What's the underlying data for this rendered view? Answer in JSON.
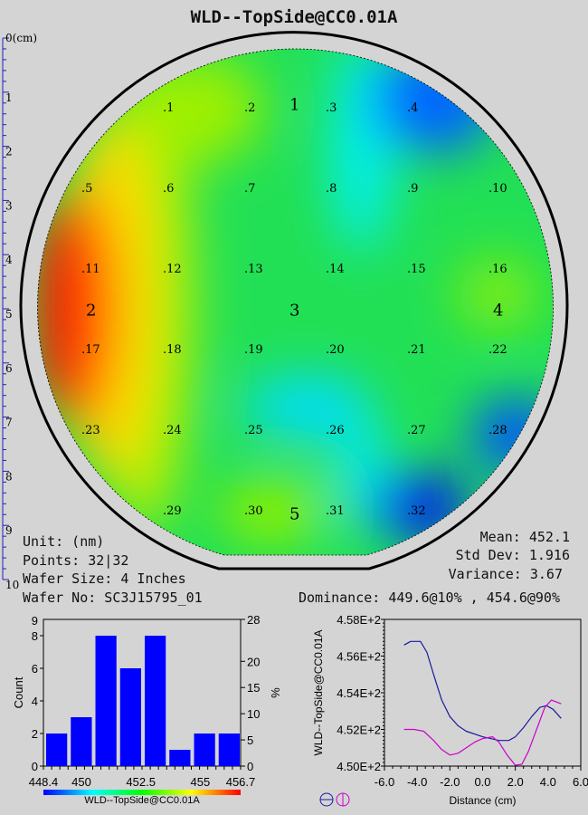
{
  "title": "WLD--TopSide@CC0.01A",
  "ruler": {
    "labels": [
      "0(cm)",
      "1",
      "2",
      "3",
      "4",
      "5",
      "6",
      "7",
      "8",
      "9",
      "10"
    ]
  },
  "wafer": {
    "points": [
      {
        "label": ".1",
        "col": 1,
        "row": 0
      },
      {
        "label": ".2",
        "col": 2,
        "row": 0
      },
      {
        "label": ".3",
        "col": 3,
        "row": 0
      },
      {
        "label": ".4",
        "col": 4,
        "row": 0
      },
      {
        "label": ".5",
        "col": 0,
        "row": 1
      },
      {
        "label": ".6",
        "col": 1,
        "row": 1
      },
      {
        "label": ".7",
        "col": 2,
        "row": 1
      },
      {
        "label": ".8",
        "col": 3,
        "row": 1
      },
      {
        "label": ".9",
        "col": 4,
        "row": 1
      },
      {
        "label": ".10",
        "col": 5,
        "row": 1
      },
      {
        "label": ".11",
        "col": 0,
        "row": 2
      },
      {
        "label": ".12",
        "col": 1,
        "row": 2
      },
      {
        "label": ".13",
        "col": 2,
        "row": 2
      },
      {
        "label": ".14",
        "col": 3,
        "row": 2
      },
      {
        "label": ".15",
        "col": 4,
        "row": 2
      },
      {
        "label": ".16",
        "col": 5,
        "row": 2
      },
      {
        "label": ".17",
        "col": 0,
        "row": 3
      },
      {
        "label": ".18",
        "col": 1,
        "row": 3
      },
      {
        "label": ".19",
        "col": 2,
        "row": 3
      },
      {
        "label": ".20",
        "col": 3,
        "row": 3
      },
      {
        "label": ".21",
        "col": 4,
        "row": 3
      },
      {
        "label": ".22",
        "col": 5,
        "row": 3
      },
      {
        "label": ".23",
        "col": 0,
        "row": 4
      },
      {
        "label": ".24",
        "col": 1,
        "row": 4
      },
      {
        "label": ".25",
        "col": 2,
        "row": 4
      },
      {
        "label": ".26",
        "col": 3,
        "row": 4
      },
      {
        "label": ".27",
        "col": 4,
        "row": 4
      },
      {
        "label": ".28",
        "col": 5,
        "row": 4
      },
      {
        "label": ".29",
        "col": 1,
        "row": 5
      },
      {
        "label": ".30",
        "col": 2,
        "row": 5
      },
      {
        "label": ".31",
        "col": 3,
        "row": 5
      },
      {
        "label": ".32",
        "col": 4,
        "row": 5
      }
    ],
    "zones": [
      {
        "label": "1",
        "col": 2.5,
        "row": -0.05
      },
      {
        "label": "2",
        "col": 0,
        "row": 2.5
      },
      {
        "label": "3",
        "col": 2.5,
        "row": 2.5
      },
      {
        "label": "4",
        "col": 5,
        "row": 2.5
      },
      {
        "label": "5",
        "col": 2.5,
        "row": 5.03
      }
    ]
  },
  "info": {
    "unit": "Unit: (nm)",
    "points": "Points: 32|32",
    "wafer_size": "Wafer Size: 4 Inches",
    "wafer_no": "Wafer No: SC3J15795_01",
    "mean": "Mean: 452.1",
    "std_dev": "Std Dev: 1.916",
    "variance": "Variance: 3.67",
    "dominance": "Dominance: 449.6@10% , 454.6@90%"
  },
  "chart_data": [
    {
      "type": "bar",
      "title": "",
      "xlabel": "WLD--TopSide@CC0.01A",
      "ylabel": "Count",
      "y2label": "%",
      "xlim": [
        448.4,
        456.7
      ],
      "ylim": [
        0,
        9
      ],
      "y2lim": [
        0,
        28
      ],
      "values": [
        2,
        3,
        8,
        6,
        8,
        1,
        2,
        2
      ],
      "xticks": [
        "448.4",
        "450",
        "452.5",
        "455",
        "456.7"
      ],
      "xtick_values": [
        448.4,
        450,
        452.5,
        455,
        456.7
      ],
      "yticks": [
        0,
        2,
        4,
        6,
        8
      ],
      "yticks_labels": [
        "0",
        "2",
        "4",
        "6",
        "8"
      ],
      "y2ticks": [
        "0",
        "5",
        "10",
        "15",
        "20",
        "28"
      ],
      "y2tick_values": [
        0,
        5,
        10,
        15,
        20,
        28
      ],
      "bar_color": "#0000ff",
      "colorbar": [
        "#0000ff",
        "#00ffff",
        "#00ff00",
        "#ffff00",
        "#ff0000"
      ]
    },
    {
      "type": "line",
      "xlabel": "Distance (cm)",
      "ylabel": "WLD--TopSide@CC0.01A",
      "xlim": [
        -6,
        6
      ],
      "ylim": [
        450,
        458
      ],
      "xticks": [
        "-6.0",
        "-4.0",
        "-2.0",
        "0.0",
        "2.0",
        "4.0",
        "6.0"
      ],
      "xtick_values": [
        -6,
        -4,
        -2,
        0,
        2,
        4,
        6
      ],
      "yticks": [
        "4.50E+2",
        "4.52E+2",
        "4.54E+2",
        "4.56E+2",
        "4.58E+2"
      ],
      "ytick_values": [
        450,
        452,
        454,
        456,
        458
      ],
      "series": [
        {
          "name": "horizontal",
          "color": "#1a1aa0",
          "x": [
            -4.8,
            -4.4,
            -3.8,
            -3.4,
            -3.0,
            -2.5,
            -2.0,
            -1.5,
            -1.0,
            0,
            1.0,
            1.6,
            2.0,
            2.5,
            3.0,
            3.5,
            3.9,
            4.3,
            4.8
          ],
          "y": [
            456.6,
            456.8,
            456.8,
            456.2,
            455.0,
            453.6,
            452.7,
            452.2,
            451.9,
            451.6,
            451.4,
            451.4,
            451.6,
            452.1,
            452.7,
            453.2,
            453.3,
            453.1,
            452.6
          ]
        },
        {
          "name": "vertical",
          "color": "#cc00cc",
          "x": [
            -4.8,
            -4.2,
            -3.6,
            -3.0,
            -2.5,
            -2.0,
            -1.5,
            -1.0,
            -0.5,
            0,
            0.6,
            1.0,
            1.5,
            2.0,
            2.4,
            2.8,
            3.3,
            3.8,
            4.2,
            4.8
          ],
          "y": [
            452.0,
            452.0,
            451.9,
            451.4,
            450.9,
            450.6,
            450.7,
            451.0,
            451.3,
            451.5,
            451.6,
            451.3,
            450.6,
            450.05,
            450.1,
            450.8,
            452.0,
            453.2,
            453.6,
            453.4
          ]
        }
      ]
    }
  ]
}
